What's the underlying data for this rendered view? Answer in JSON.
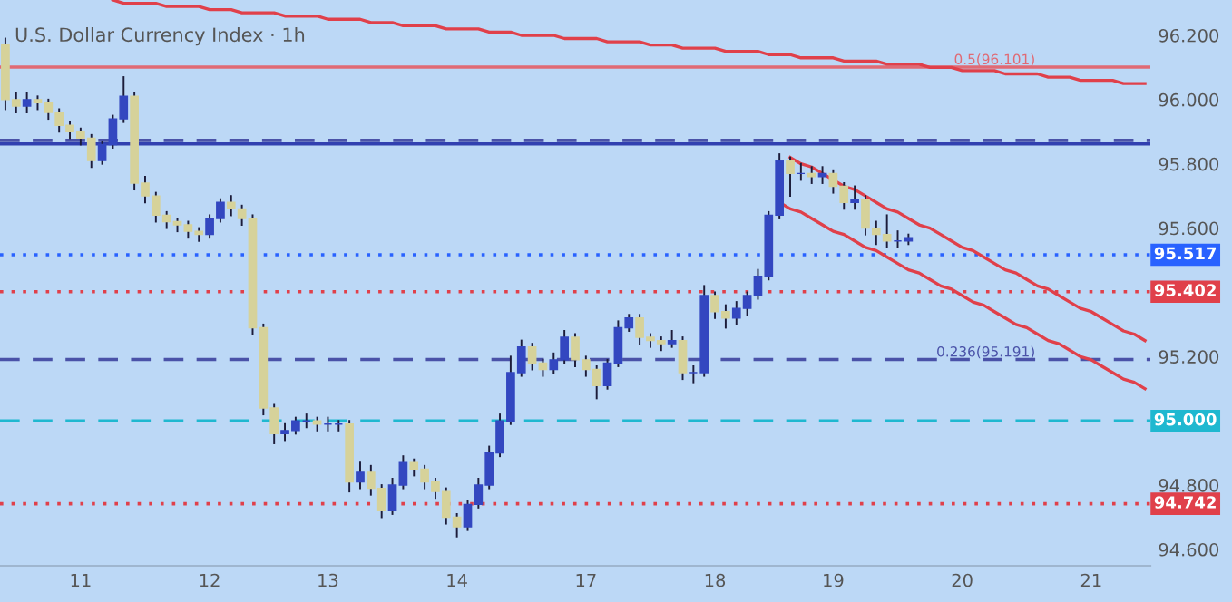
{
  "chart_data": {
    "type": "candlestick",
    "title": "U.S. Dollar Currency Index · 1h",
    "categories": [
      null,
      null,
      null,
      null,
      null,
      null,
      null,
      "11",
      null,
      null,
      null,
      null,
      null,
      null,
      null,
      null,
      null,
      null,
      null,
      "12",
      null,
      null,
      null,
      null,
      null,
      null,
      null,
      null,
      null,
      null,
      "13",
      null,
      null,
      null,
      null,
      null,
      null,
      null,
      null,
      null,
      null,
      null,
      "14",
      null,
      null,
      null,
      null,
      null,
      null,
      null,
      null,
      null,
      null,
      null,
      "17",
      null,
      null,
      null,
      null,
      null,
      null,
      null,
      null,
      null,
      null,
      null,
      "18",
      null,
      null,
      null,
      null,
      null,
      null,
      null,
      null,
      null,
      null,
      "19",
      null,
      null,
      null,
      null,
      null,
      null,
      null,
      null,
      null,
      null,
      null,
      "20",
      null,
      null,
      null,
      null,
      null,
      null,
      null,
      null,
      null,
      null,
      null,
      "21",
      null,
      null,
      null,
      null,
      null
    ],
    "ohlc": [
      [
        96.17,
        96.19,
        95.97,
        96.0
      ],
      [
        96.0,
        96.02,
        95.96,
        95.98
      ],
      [
        95.98,
        96.02,
        95.96,
        96.0
      ],
      [
        96.0,
        96.01,
        95.97,
        95.99
      ],
      [
        95.99,
        96.0,
        95.94,
        95.96
      ],
      [
        95.96,
        95.97,
        95.9,
        95.92
      ],
      [
        95.92,
        95.93,
        95.88,
        95.9
      ],
      [
        95.9,
        95.91,
        95.86,
        95.88
      ],
      [
        95.88,
        95.89,
        95.79,
        95.81
      ],
      [
        95.81,
        95.87,
        95.8,
        95.86
      ],
      [
        95.86,
        95.95,
        95.85,
        95.94
      ],
      [
        95.94,
        96.07,
        95.93,
        96.01
      ],
      [
        96.01,
        96.02,
        95.72,
        95.74
      ],
      [
        95.74,
        95.76,
        95.68,
        95.7
      ],
      [
        95.7,
        95.71,
        95.62,
        95.64
      ],
      [
        95.64,
        95.65,
        95.6,
        95.62
      ],
      [
        95.62,
        95.63,
        95.59,
        95.61
      ],
      [
        95.61,
        95.62,
        95.57,
        95.59
      ],
      [
        95.59,
        95.6,
        95.56,
        95.58
      ],
      [
        95.58,
        95.64,
        95.57,
        95.63
      ],
      [
        95.63,
        95.69,
        95.62,
        95.68
      ],
      [
        95.68,
        95.7,
        95.64,
        95.66
      ],
      [
        95.66,
        95.67,
        95.61,
        95.63
      ],
      [
        95.63,
        95.64,
        95.27,
        95.29
      ],
      [
        95.29,
        95.3,
        95.02,
        95.04
      ],
      [
        95.04,
        95.05,
        94.93,
        94.96
      ],
      [
        94.96,
        94.99,
        94.94,
        94.97
      ],
      [
        94.97,
        95.01,
        94.96,
        95.0
      ],
      [
        95.0,
        95.02,
        94.98,
        95.0
      ],
      [
        95.0,
        95.01,
        94.97,
        94.99
      ],
      [
        94.99,
        95.01,
        94.97,
        94.99
      ],
      [
        94.99,
        95.0,
        94.97,
        94.99
      ],
      [
        94.99,
        95.0,
        94.78,
        94.81
      ],
      [
        94.81,
        94.87,
        94.79,
        94.84
      ],
      [
        94.84,
        94.86,
        94.77,
        94.79
      ],
      [
        94.79,
        94.8,
        94.7,
        94.72
      ],
      [
        94.72,
        94.82,
        94.71,
        94.8
      ],
      [
        94.8,
        94.89,
        94.79,
        94.87
      ],
      [
        94.87,
        94.88,
        94.83,
        94.85
      ],
      [
        94.85,
        94.86,
        94.79,
        94.81
      ],
      [
        94.81,
        94.82,
        94.76,
        94.78
      ],
      [
        94.78,
        94.79,
        94.68,
        94.7
      ],
      [
        94.7,
        94.71,
        94.64,
        94.67
      ],
      [
        94.67,
        94.75,
        94.66,
        94.74
      ],
      [
        94.74,
        94.82,
        94.73,
        94.8
      ],
      [
        94.8,
        94.92,
        94.79,
        94.9
      ],
      [
        94.9,
        95.02,
        94.89,
        95.0
      ],
      [
        95.0,
        95.2,
        94.99,
        95.15
      ],
      [
        95.15,
        95.25,
        95.14,
        95.23
      ],
      [
        95.23,
        95.24,
        95.16,
        95.18
      ],
      [
        95.18,
        95.19,
        95.14,
        95.16
      ],
      [
        95.16,
        95.21,
        95.15,
        95.19
      ],
      [
        95.19,
        95.28,
        95.18,
        95.26
      ],
      [
        95.26,
        95.27,
        95.17,
        95.19
      ],
      [
        95.19,
        95.2,
        95.14,
        95.16
      ],
      [
        95.16,
        95.17,
        95.07,
        95.11
      ],
      [
        95.11,
        95.19,
        95.1,
        95.18
      ],
      [
        95.18,
        95.31,
        95.17,
        95.29
      ],
      [
        95.29,
        95.33,
        95.28,
        95.32
      ],
      [
        95.32,
        95.33,
        95.24,
        95.26
      ],
      [
        95.26,
        95.27,
        95.23,
        95.25
      ],
      [
        95.25,
        95.26,
        95.22,
        95.24
      ],
      [
        95.24,
        95.28,
        95.23,
        95.25
      ],
      [
        95.25,
        95.26,
        95.13,
        95.15
      ],
      [
        95.15,
        95.17,
        95.12,
        95.15
      ],
      [
        95.15,
        95.42,
        95.14,
        95.39
      ],
      [
        95.39,
        95.4,
        95.32,
        95.34
      ],
      [
        95.34,
        95.36,
        95.29,
        95.32
      ],
      [
        95.32,
        95.37,
        95.3,
        95.35
      ],
      [
        95.35,
        95.4,
        95.33,
        95.39
      ],
      [
        95.39,
        95.47,
        95.38,
        95.45
      ],
      [
        95.45,
        95.65,
        95.44,
        95.64
      ],
      [
        95.64,
        95.83,
        95.63,
        95.81
      ],
      [
        95.81,
        95.82,
        95.7,
        95.77
      ],
      [
        95.77,
        95.8,
        95.75,
        95.77
      ],
      [
        95.77,
        95.79,
        95.74,
        95.76
      ],
      [
        95.76,
        95.79,
        95.74,
        95.77
      ],
      [
        95.77,
        95.78,
        95.71,
        95.73
      ],
      [
        95.73,
        95.74,
        95.66,
        95.68
      ],
      [
        95.68,
        95.73,
        95.66,
        95.69
      ],
      [
        95.69,
        95.7,
        95.58,
        95.6
      ],
      [
        95.6,
        95.62,
        95.55,
        95.58
      ],
      [
        95.58,
        95.64,
        95.54,
        95.56
      ],
      [
        95.56,
        95.59,
        95.54,
        95.56
      ],
      [
        95.56,
        95.58,
        95.55,
        95.57
      ],
      null,
      null,
      null,
      null,
      null,
      null,
      null,
      null,
      null,
      null,
      null,
      null,
      null,
      null,
      null,
      null,
      null,
      null,
      null,
      null,
      null,
      null
    ],
    "colors": [
      "#d6d29a",
      "#d6d29a",
      "#3347c0",
      "#d6d29a",
      "#d6d29a",
      "#d6d29a",
      "#d6d29a",
      "#d6d29a",
      "#d6d29a",
      "#3347c0",
      "#3347c0",
      "#3347c0",
      "#d6d29a",
      "#d6d29a",
      "#d6d29a",
      "#d6d29a",
      "#d6d29a",
      "#d6d29a",
      "#d6d29a",
      "#3347c0",
      "#3347c0",
      "#d6d29a",
      "#d6d29a",
      "#d6d29a",
      "#d6d29a",
      "#d6d29a",
      "#3347c0",
      "#3347c0",
      "#3347c0",
      "#d6d29a",
      "#3347c0",
      "#3347c0",
      "#d6d29a",
      "#3347c0",
      "#d6d29a",
      "#d6d29a",
      "#3347c0",
      "#3347c0",
      "#d6d29a",
      "#d6d29a",
      "#d6d29a",
      "#d6d29a",
      "#d6d29a",
      "#3347c0",
      "#3347c0",
      "#3347c0",
      "#3347c0",
      "#3347c0",
      "#3347c0",
      "#d6d29a",
      "#d6d29a",
      "#3347c0",
      "#3347c0",
      "#d6d29a",
      "#d6d29a",
      "#d6d29a",
      "#3347c0",
      "#3347c0",
      "#3347c0",
      "#d6d29a",
      "#d6d29a",
      "#d6d29a",
      "#3347c0",
      "#d6d29a",
      "#3347c0",
      "#3347c0",
      "#d6d29a",
      "#d6d29a",
      "#3347c0",
      "#3347c0",
      "#3347c0",
      "#3347c0",
      "#3347c0",
      "#d6d29a",
      "#3347c0",
      "#d6d29a",
      "#3347c0",
      "#d6d29a",
      "#d6d29a",
      "#3347c0",
      "#d6d29a",
      "#d6d29a",
      "#d6d29a",
      "#3347c0",
      "#3347c0",
      null,
      null,
      null,
      null,
      null,
      null,
      null,
      null,
      null,
      null,
      null,
      null,
      null,
      null,
      null,
      null,
      null,
      null,
      null,
      null,
      null,
      null
    ],
    "series": [
      {
        "type": "line",
        "color": "#e0404a",
        "values": [
          null,
          null,
          null,
          null,
          null,
          null,
          null,
          null,
          null,
          null,
          96.31,
          96.3,
          96.3,
          96.3,
          96.3,
          96.29,
          96.29,
          96.29,
          96.29,
          96.28,
          96.28,
          96.28,
          96.27,
          96.27,
          96.27,
          96.27,
          96.26,
          96.26,
          96.26,
          96.26,
          96.25,
          96.25,
          96.25,
          96.25,
          96.24,
          96.24,
          96.24,
          96.23,
          96.23,
          96.23,
          96.23,
          96.22,
          96.22,
          96.22,
          96.22,
          96.21,
          96.21,
          96.21,
          96.2,
          96.2,
          96.2,
          96.2,
          96.19,
          96.19,
          96.19,
          96.19,
          96.18,
          96.18,
          96.18,
          96.18,
          96.17,
          96.17,
          96.17,
          96.16,
          96.16,
          96.16,
          96.16,
          96.15,
          96.15,
          96.15,
          96.15,
          96.14,
          96.14,
          96.14,
          96.13,
          96.13,
          96.13,
          96.13,
          96.12,
          96.12,
          96.12,
          96.12,
          96.11,
          96.11,
          96.11,
          96.11,
          96.1,
          96.1,
          96.1,
          96.09,
          96.09,
          96.09,
          96.09,
          96.08,
          96.08,
          96.08,
          96.08,
          96.07,
          96.07,
          96.07,
          96.06,
          96.06,
          96.06,
          96.06,
          96.05,
          96.05,
          96.05
        ]
      },
      {
        "type": "line",
        "color": "#e0404a",
        "values": [
          null,
          null,
          null,
          null,
          null,
          null,
          null,
          null,
          null,
          null,
          null,
          null,
          null,
          null,
          null,
          null,
          null,
          null,
          null,
          null,
          null,
          null,
          null,
          null,
          null,
          null,
          null,
          null,
          null,
          null,
          null,
          null,
          null,
          null,
          null,
          null,
          null,
          null,
          null,
          null,
          null,
          null,
          null,
          null,
          null,
          null,
          null,
          null,
          null,
          null,
          null,
          null,
          null,
          null,
          null,
          null,
          null,
          null,
          null,
          null,
          null,
          null,
          null,
          null,
          null,
          null,
          null,
          null,
          null,
          null,
          null,
          null,
          null,
          95.82,
          95.8,
          95.79,
          95.77,
          95.75,
          95.73,
          95.72,
          95.7,
          95.68,
          95.66,
          95.65,
          95.63,
          95.61,
          95.6,
          95.58,
          95.56,
          95.54,
          95.53,
          95.51,
          95.49,
          95.47,
          95.46,
          95.44,
          95.42,
          95.41,
          95.39,
          95.37,
          95.35,
          95.34,
          95.32,
          95.3,
          95.28,
          95.27,
          95.25
        ]
      },
      {
        "type": "line",
        "color": "#e0404a",
        "values": [
          null,
          null,
          null,
          null,
          null,
          null,
          null,
          null,
          null,
          null,
          null,
          null,
          null,
          null,
          null,
          null,
          null,
          null,
          null,
          null,
          null,
          null,
          null,
          null,
          null,
          null,
          null,
          null,
          null,
          null,
          null,
          null,
          null,
          null,
          null,
          null,
          null,
          null,
          null,
          null,
          null,
          null,
          null,
          null,
          null,
          null,
          null,
          null,
          null,
          null,
          null,
          null,
          null,
          null,
          null,
          null,
          null,
          null,
          null,
          null,
          null,
          null,
          null,
          null,
          null,
          null,
          null,
          null,
          null,
          null,
          null,
          null,
          95.68,
          95.66,
          95.65,
          95.63,
          95.61,
          95.59,
          95.58,
          95.56,
          95.54,
          95.53,
          95.51,
          95.49,
          95.47,
          95.46,
          95.44,
          95.42,
          95.41,
          95.39,
          95.37,
          95.36,
          95.34,
          95.32,
          95.3,
          95.29,
          95.27,
          95.25,
          95.24,
          95.22,
          95.2,
          95.19,
          95.17,
          95.15,
          95.13,
          95.12,
          95.1
        ]
      }
    ],
    "ref_lines": [
      {
        "axis": "y",
        "value": 96.101,
        "label": "0.5(96.101)",
        "color": "#e06a74",
        "line_style": "solid"
      },
      {
        "axis": "y",
        "value": 95.873,
        "color": "#4a52a8",
        "line_style": "dashed"
      },
      {
        "axis": "y",
        "value": 95.862,
        "color": "#3140b0",
        "line_style": "solid"
      },
      {
        "axis": "y",
        "value": 95.517,
        "label": "95.517",
        "color": "#2962ff",
        "line_style": "dotted"
      },
      {
        "axis": "y",
        "value": 95.402,
        "label": "95.402",
        "color": "#e0404a",
        "line_style": "dotted"
      },
      {
        "axis": "y",
        "value": 95.191,
        "label": "0.236(95.191)",
        "color": "#4a52a8",
        "line_style": "dashed"
      },
      {
        "axis": "y",
        "value": 95.0,
        "label": "95.000",
        "color": "#1fb8d0",
        "line_style": "dashed"
      },
      {
        "axis": "y",
        "value": 94.742,
        "label": "94.742",
        "color": "#e0404a",
        "line_style": "dotted"
      }
    ],
    "ylim": [
      94.549,
      96.31
    ],
    "yticks": [
      {
        "value": 96.2,
        "label": "96.200"
      },
      {
        "value": 96.0,
        "label": "96.000"
      },
      {
        "value": 95.8,
        "label": "95.800"
      },
      {
        "value": 95.6,
        "label": "95.600"
      },
      {
        "value": 95.2,
        "label": "95.200"
      },
      {
        "value": 94.8,
        "label": "94.800"
      },
      {
        "value": 94.6,
        "label": "94.600"
      }
    ],
    "grid": false,
    "legend": false
  }
}
